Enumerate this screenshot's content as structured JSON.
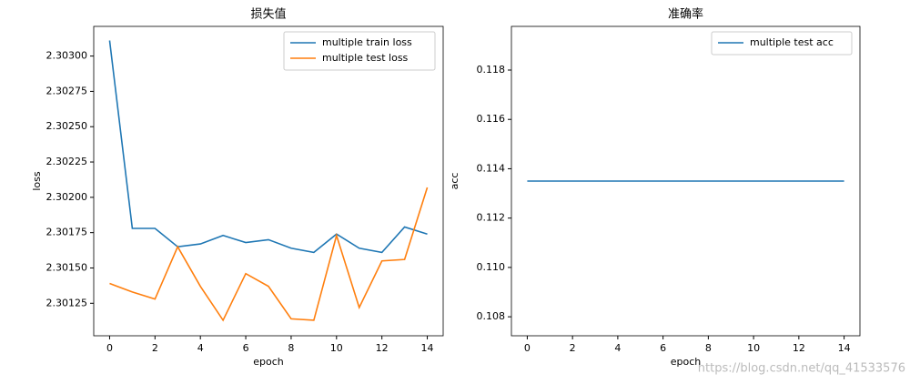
{
  "chart_data": [
    {
      "type": "line",
      "title": "损失值",
      "xlabel": "epoch",
      "ylabel": "loss",
      "x": [
        0,
        1,
        2,
        3,
        4,
        5,
        6,
        7,
        8,
        9,
        10,
        11,
        12,
        13,
        14
      ],
      "series": [
        {
          "name": "multiple train loss",
          "color": "#1f77b4",
          "values": [
            2.30311,
            2.30178,
            2.30178,
            2.30165,
            2.30167,
            2.30173,
            2.30168,
            2.3017,
            2.30164,
            2.30161,
            2.30174,
            2.30164,
            2.30161,
            2.30179,
            2.30174
          ]
        },
        {
          "name": "multiple test loss",
          "color": "#ff7f0e",
          "values": [
            2.30139,
            2.30133,
            2.30128,
            2.30165,
            2.30137,
            2.30113,
            2.30146,
            2.30137,
            2.30114,
            2.30113,
            2.30173,
            2.30122,
            2.30155,
            2.30156,
            2.30207
          ]
        }
      ],
      "xlim": [
        -0.7,
        14.7
      ],
      "xticks": [
        0,
        2,
        4,
        6,
        8,
        10,
        12,
        14
      ],
      "ylim": [
        2.30102,
        2.30321
      ],
      "yticks": [
        {
          "value": 2.30125,
          "label": "2.30125"
        },
        {
          "value": 2.3015,
          "label": "2.30150"
        },
        {
          "value": 2.30175,
          "label": "2.30175"
        },
        {
          "value": 2.302,
          "label": "2.30200"
        },
        {
          "value": 2.30225,
          "label": "2.30225"
        },
        {
          "value": 2.3025,
          "label": "2.30250"
        },
        {
          "value": 2.30275,
          "label": "2.30275"
        },
        {
          "value": 2.303,
          "label": "2.30300"
        }
      ],
      "legend": "upper right"
    },
    {
      "type": "line",
      "title": "准确率",
      "xlabel": "epoch",
      "ylabel": "acc",
      "x": [
        0,
        1,
        2,
        3,
        4,
        5,
        6,
        7,
        8,
        9,
        10,
        11,
        12,
        13,
        14
      ],
      "series": [
        {
          "name": "multiple test acc",
          "color": "#1f77b4",
          "values": [
            0.1135,
            0.1135,
            0.1135,
            0.1135,
            0.1135,
            0.1135,
            0.1135,
            0.1135,
            0.1135,
            0.1135,
            0.1135,
            0.1135,
            0.1135,
            0.1135,
            0.1135
          ]
        }
      ],
      "xlim": [
        -0.7,
        14.7
      ],
      "xticks": [
        0,
        2,
        4,
        6,
        8,
        10,
        12,
        14
      ],
      "ylim": [
        0.10723,
        0.11977
      ],
      "yticks": [
        0.108,
        {
          "value": 0.11,
          "label": "0.110"
        },
        0.112,
        0.114,
        0.116,
        0.118
      ],
      "legend": "upper right"
    }
  ],
  "watermark": "https://blog.csdn.net/qq_41533576"
}
